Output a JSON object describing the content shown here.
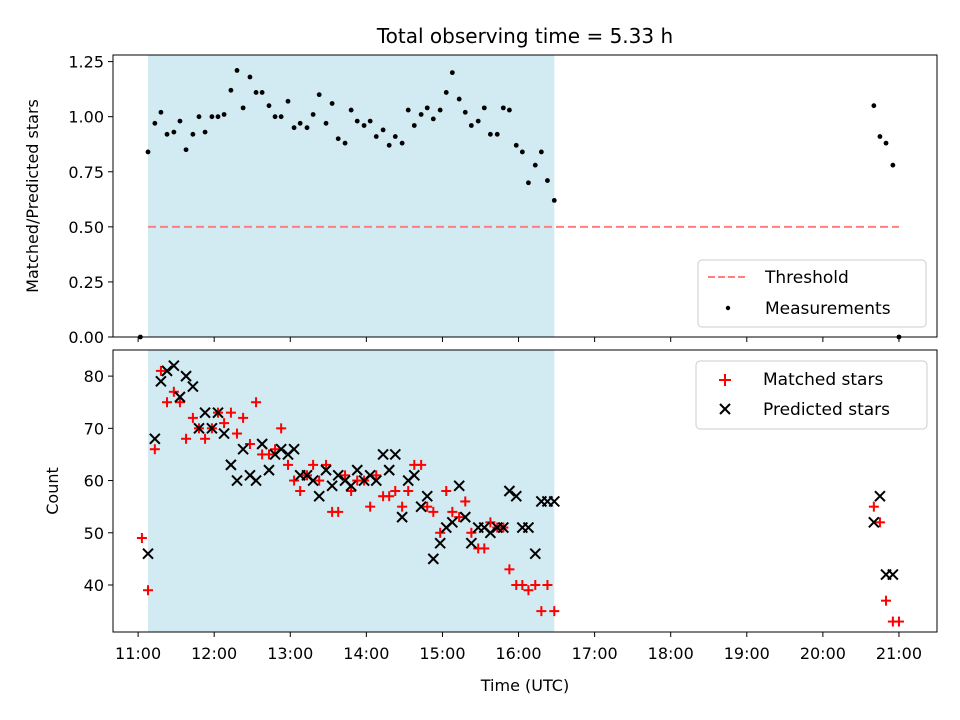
{
  "title": "Total observing time = 5.33 h",
  "colors": {
    "shade": "#add8e6",
    "threshold": "#ff7f7f",
    "measurement": "#000000",
    "matched": "#ff0000",
    "predicted": "#000000"
  },
  "x_axis": {
    "label": "Time (UTC)",
    "ticks": [
      "11:00",
      "12:00",
      "13:00",
      "14:00",
      "15:00",
      "16:00",
      "17:00",
      "18:00",
      "19:00",
      "20:00",
      "21:00"
    ],
    "range_hours": [
      10.67,
      21.5
    ]
  },
  "shaded_interval_hours": [
    11.13,
    16.47
  ],
  "chart_data": [
    {
      "type": "scatter",
      "ylabel": "Matched/Predicted stars",
      "ylim": [
        0,
        1.28
      ],
      "yticks": [
        "0.00",
        "0.25",
        "0.50",
        "0.75",
        "1.00",
        "1.25"
      ],
      "legend_position": "lower-right",
      "threshold": {
        "name": "Threshold",
        "y": 0.5,
        "x_range": [
          11.13,
          21.0
        ]
      },
      "series": [
        {
          "name": "Measurements",
          "x": [
            11.03,
            11.13,
            11.22,
            11.3,
            11.38,
            11.47,
            11.55,
            11.63,
            11.72,
            11.8,
            11.88,
            11.97,
            12.05,
            12.13,
            12.22,
            12.3,
            12.38,
            12.47,
            12.55,
            12.63,
            12.72,
            12.8,
            12.88,
            12.97,
            13.05,
            13.13,
            13.22,
            13.3,
            13.38,
            13.47,
            13.55,
            13.63,
            13.72,
            13.8,
            13.88,
            13.97,
            14.05,
            14.13,
            14.22,
            14.3,
            14.38,
            14.47,
            14.55,
            14.63,
            14.72,
            14.8,
            14.88,
            14.97,
            15.05,
            15.13,
            15.22,
            15.3,
            15.38,
            15.47,
            15.55,
            15.63,
            15.72,
            15.8,
            15.88,
            15.97,
            16.05,
            16.13,
            16.22,
            16.3,
            16.38,
            16.47,
            20.67,
            20.75,
            20.83,
            20.92,
            21.0
          ],
          "y": [
            0.0,
            0.84,
            0.97,
            1.02,
            0.92,
            0.93,
            0.98,
            0.85,
            0.92,
            1.0,
            0.93,
            1.0,
            1.0,
            1.01,
            1.12,
            1.21,
            1.04,
            1.18,
            1.11,
            1.11,
            1.05,
            1.0,
            1.0,
            1.07,
            0.95,
            0.97,
            0.95,
            1.01,
            1.1,
            0.97,
            1.06,
            0.9,
            0.88,
            1.03,
            0.98,
            0.96,
            0.98,
            0.91,
            0.94,
            0.87,
            0.91,
            0.88,
            1.03,
            0.96,
            1.01,
            1.04,
            0.99,
            1.03,
            1.11,
            1.2,
            1.08,
            1.02,
            0.96,
            0.98,
            1.04,
            0.92,
            0.92,
            1.04,
            1.03,
            0.87,
            0.84,
            0.7,
            0.78,
            0.84,
            0.71,
            0.62,
            1.05,
            0.91,
            0.88,
            0.78,
            0.0
          ]
        }
      ]
    },
    {
      "type": "scatter",
      "ylabel": "Count",
      "ylim": [
        31,
        85
      ],
      "yticks": [
        "40",
        "50",
        "60",
        "70",
        "80"
      ],
      "legend_position": "upper-right",
      "series": [
        {
          "name": "Matched stars",
          "x": [
            11.05,
            11.13,
            11.22,
            11.3,
            11.38,
            11.47,
            11.55,
            11.63,
            11.72,
            11.8,
            11.88,
            11.97,
            12.05,
            12.13,
            12.22,
            12.3,
            12.38,
            12.47,
            12.55,
            12.63,
            12.72,
            12.8,
            12.88,
            12.97,
            13.05,
            13.13,
            13.22,
            13.3,
            13.38,
            13.47,
            13.55,
            13.63,
            13.72,
            13.8,
            13.88,
            13.97,
            14.05,
            14.13,
            14.22,
            14.3,
            14.38,
            14.47,
            14.55,
            14.63,
            14.72,
            14.8,
            14.88,
            14.97,
            15.05,
            15.13,
            15.22,
            15.3,
            15.38,
            15.47,
            15.55,
            15.63,
            15.72,
            15.8,
            15.88,
            15.97,
            16.05,
            16.13,
            16.22,
            16.3,
            16.38,
            16.47,
            20.67,
            20.75,
            20.83,
            20.92,
            21.0
          ],
          "y": [
            49,
            39,
            66,
            81,
            75,
            77,
            75,
            68,
            72,
            70,
            68,
            70,
            73,
            71,
            73,
            69,
            72,
            67,
            75,
            65,
            65,
            66,
            70,
            63,
            60,
            58,
            61,
            63,
            60,
            63,
            54,
            54,
            61,
            58,
            60,
            60,
            55,
            61,
            57,
            57,
            58,
            55,
            58,
            63,
            63,
            55,
            54,
            50,
            58,
            54,
            53,
            56,
            50,
            47,
            47,
            52,
            51,
            51,
            43,
            40,
            40,
            39,
            40,
            35,
            40,
            35,
            55,
            52,
            37,
            33,
            33
          ]
        },
        {
          "name": "Predicted stars",
          "x": [
            11.13,
            11.22,
            11.3,
            11.38,
            11.47,
            11.55,
            11.63,
            11.72,
            11.8,
            11.88,
            11.97,
            12.05,
            12.13,
            12.22,
            12.3,
            12.38,
            12.47,
            12.55,
            12.63,
            12.72,
            12.8,
            12.88,
            12.97,
            13.05,
            13.13,
            13.22,
            13.3,
            13.38,
            13.47,
            13.55,
            13.63,
            13.72,
            13.8,
            13.88,
            13.97,
            14.05,
            14.13,
            14.22,
            14.3,
            14.38,
            14.47,
            14.55,
            14.63,
            14.72,
            14.8,
            14.88,
            14.97,
            15.05,
            15.13,
            15.22,
            15.3,
            15.38,
            15.47,
            15.55,
            15.63,
            15.72,
            15.8,
            15.88,
            15.97,
            16.05,
            16.13,
            16.22,
            16.3,
            16.38,
            16.47,
            20.67,
            20.75,
            20.83,
            20.92
          ],
          "y": [
            46,
            68,
            79,
            81,
            82,
            76,
            80,
            78,
            70,
            73,
            70,
            73,
            69,
            63,
            60,
            66,
            61,
            60,
            67,
            62,
            65,
            66,
            65,
            66,
            61,
            61,
            60,
            57,
            62,
            59,
            61,
            60,
            59,
            62,
            60,
            61,
            60,
            65,
            62,
            65,
            53,
            60,
            61,
            55,
            57,
            45,
            48,
            51,
            52,
            59,
            53,
            48,
            51,
            51,
            50,
            51,
            51,
            58,
            57,
            51,
            51,
            46,
            56,
            56,
            56,
            52,
            57,
            42,
            42
          ]
        }
      ]
    }
  ]
}
